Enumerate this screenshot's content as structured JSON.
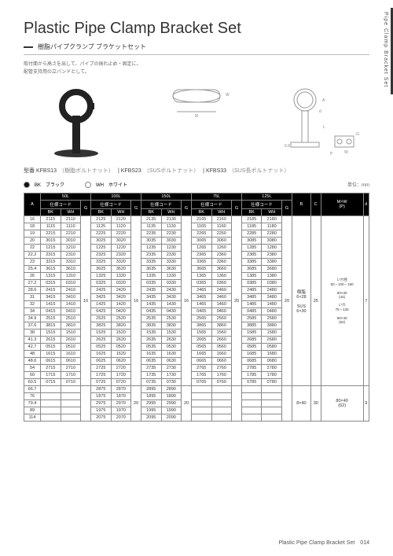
{
  "sideLabel": "Pipe Clamp Bracket Set",
  "title": "Plastic Pipe Clamp Bracket Set",
  "subtitle": "樹脂パイプクランプ ブラケットセット",
  "desc1": "取付面から高さを出して、パイプの振れ止め・固定に。",
  "desc2": "配管支持用の立バンドとして。",
  "modelLabel": "型番",
  "model1": "KFBS13",
  "model1n": "（樹脂ボルトナット）",
  "model2": "KFBS23",
  "model2n": "（SUSボルトナット）",
  "model3": "KFBS33",
  "model3n": "（SUS長ボルトナット）",
  "bk": "BK　ブラック",
  "wh": "WH　ホワイト",
  "unit": "単位：mm",
  "footer": "Plastic Pipe Clamp Bracket Set　014",
  "headers": {
    "A": "A",
    "sizes": [
      "50L",
      "100L",
      "150L",
      "75L",
      "125L"
    ],
    "code": "仕様コード",
    "G": "G",
    "BK": "BK",
    "WH": "WH",
    "B": "B",
    "C": "C",
    "MW": "M×W\n(P)",
    "d": "d"
  },
  "rows": [
    {
      "A": "16",
      "c": [
        [
          "2115",
          "2110"
        ],
        [
          "2125",
          "2120"
        ],
        [
          "2135",
          "2130"
        ],
        [
          "2165",
          "2160"
        ],
        [
          "2185",
          "2180"
        ]
      ]
    },
    {
      "A": "18",
      "c": [
        [
          "1115",
          "1110"
        ],
        [
          "1125",
          "1120"
        ],
        [
          "1135",
          "1130"
        ],
        [
          "1165",
          "1160"
        ],
        [
          "1185",
          "1180"
        ]
      ]
    },
    {
      "A": "19",
      "c": [
        [
          "2215",
          "2210"
        ],
        [
          "2225",
          "2220"
        ],
        [
          "2235",
          "2230"
        ],
        [
          "2265",
          "2260"
        ],
        [
          "2285",
          "2280"
        ]
      ]
    },
    {
      "A": "20",
      "c": [
        [
          "3015",
          "3010"
        ],
        [
          "3025",
          "3020"
        ],
        [
          "3035",
          "3030"
        ],
        [
          "3065",
          "3060"
        ],
        [
          "3085",
          "3080"
        ]
      ]
    },
    {
      "A": "22",
      "c": [
        [
          "1215",
          "1210"
        ],
        [
          "1225",
          "1220"
        ],
        [
          "1235",
          "1230"
        ],
        [
          "1265",
          "1260"
        ],
        [
          "1285",
          "1280"
        ]
      ]
    },
    {
      "A": "22.2",
      "c": [
        [
          "2315",
          "2310"
        ],
        [
          "2325",
          "2320"
        ],
        [
          "2335",
          "2330"
        ],
        [
          "2365",
          "2360"
        ],
        [
          "2385",
          "2380"
        ]
      ]
    },
    {
      "A": "23",
      "c": [
        [
          "3315",
          "3310"
        ],
        [
          "3325",
          "3320"
        ],
        [
          "3335",
          "3330"
        ],
        [
          "3365",
          "3360"
        ],
        [
          "3385",
          "3380"
        ]
      ]
    },
    {
      "A": "25.4",
      "c": [
        [
          "3615",
          "3610"
        ],
        [
          "3625",
          "3620"
        ],
        [
          "3635",
          "3630"
        ],
        [
          "3665",
          "3660"
        ],
        [
          "3685",
          "3680"
        ]
      ]
    },
    {
      "A": "26",
      "c": [
        [
          "1315",
          "1310"
        ],
        [
          "1325",
          "1320"
        ],
        [
          "1335",
          "1330"
        ],
        [
          "1365",
          "1360"
        ],
        [
          "1385",
          "1380"
        ]
      ]
    },
    {
      "A": "27.2",
      "c": [
        [
          "0315",
          "0310"
        ],
        [
          "0325",
          "0320"
        ],
        [
          "0335",
          "0330"
        ],
        [
          "0365",
          "0360"
        ],
        [
          "0385",
          "0380"
        ]
      ]
    },
    {
      "A": "28.6",
      "c": [
        [
          "2415",
          "2410"
        ],
        [
          "2425",
          "2420"
        ],
        [
          "2435",
          "2430"
        ],
        [
          "2465",
          "2460"
        ],
        [
          "2485",
          "2480"
        ]
      ]
    },
    {
      "A": "31",
      "c": [
        [
          "3415",
          "3410"
        ],
        [
          "3425",
          "3420"
        ],
        [
          "3435",
          "3430"
        ],
        [
          "3465",
          "3460"
        ],
        [
          "3485",
          "3480"
        ]
      ]
    },
    {
      "A": "32",
      "c": [
        [
          "1415",
          "1410"
        ],
        [
          "1425",
          "1420"
        ],
        [
          "1435",
          "1430"
        ],
        [
          "1465",
          "1460"
        ],
        [
          "1485",
          "1480"
        ]
      ]
    },
    {
      "A": "34",
      "c": [
        [
          "0415",
          "0410"
        ],
        [
          "0425",
          "0420"
        ],
        [
          "0435",
          "0430"
        ],
        [
          "0465",
          "0460"
        ],
        [
          "0485",
          "0480"
        ]
      ]
    },
    {
      "A": "34.9",
      "c": [
        [
          "2515",
          "2510"
        ],
        [
          "2525",
          "2520"
        ],
        [
          "2535",
          "2530"
        ],
        [
          "2565",
          "2560"
        ],
        [
          "2585",
          "2580"
        ]
      ]
    },
    {
      "A": "37.6",
      "c": [
        [
          "3815",
          "3810"
        ],
        [
          "3825",
          "3820"
        ],
        [
          "3835",
          "3830"
        ],
        [
          "3865",
          "3860"
        ],
        [
          "3885",
          "3880"
        ]
      ]
    },
    {
      "A": "38",
      "c": [
        [
          "1515",
          "1510"
        ],
        [
          "1525",
          "1520"
        ],
        [
          "1535",
          "1530"
        ],
        [
          "1565",
          "1560"
        ],
        [
          "1585",
          "1580"
        ]
      ]
    },
    {
      "A": "41.3",
      "c": [
        [
          "2615",
          "2610"
        ],
        [
          "2625",
          "2620"
        ],
        [
          "2635",
          "2630"
        ],
        [
          "2665",
          "2660"
        ],
        [
          "2685",
          "2680"
        ]
      ]
    },
    {
      "A": "42.7",
      "c": [
        [
          "0515",
          "0510"
        ],
        [
          "0525",
          "0520"
        ],
        [
          "0535",
          "0530"
        ],
        [
          "0565",
          "0560"
        ],
        [
          "0585",
          "0580"
        ]
      ]
    },
    {
      "A": "48",
      "c": [
        [
          "1615",
          "1610"
        ],
        [
          "1625",
          "1620"
        ],
        [
          "1635",
          "1630"
        ],
        [
          "1665",
          "1660"
        ],
        [
          "1685",
          "1680"
        ]
      ]
    },
    {
      "A": "48.6",
      "c": [
        [
          "0615",
          "0610"
        ],
        [
          "0625",
          "0620"
        ],
        [
          "0635",
          "0630"
        ],
        [
          "0665",
          "0660"
        ],
        [
          "0685",
          "0680"
        ]
      ]
    },
    {
      "A": "54",
      "c": [
        [
          "2715",
          "2710"
        ],
        [
          "2725",
          "2720"
        ],
        [
          "2735",
          "2730"
        ],
        [
          "2765",
          "2760"
        ],
        [
          "2785",
          "2780"
        ]
      ]
    },
    {
      "A": "60",
      "c": [
        [
          "1715",
          "1710"
        ],
        [
          "1725",
          "1720"
        ],
        [
          "1735",
          "1730"
        ],
        [
          "1765",
          "1760"
        ],
        [
          "1785",
          "1780"
        ]
      ]
    },
    {
      "A": "60.5",
      "c": [
        [
          "0715",
          "0710"
        ],
        [
          "0725",
          "0720"
        ],
        [
          "0735",
          "0730"
        ],
        [
          "0765",
          "0760"
        ],
        [
          "0785",
          "0780"
        ]
      ]
    }
  ],
  "rows2": [
    {
      "A": "66.7",
      "c": [
        [
          "",
          ""
        ],
        [
          "2875",
          "2870"
        ],
        [
          "2895",
          "2890"
        ],
        [
          "",
          ""
        ],
        [
          "",
          ""
        ]
      ]
    },
    {
      "A": "76",
      "c": [
        [
          "",
          ""
        ],
        [
          "1875",
          "1870"
        ],
        [
          "1895",
          "1890"
        ],
        [
          "",
          ""
        ],
        [
          "",
          ""
        ]
      ]
    },
    {
      "A": "79.4",
      "c": [
        [
          "",
          ""
        ],
        [
          "2975",
          "2970"
        ],
        [
          "2995",
          "2990"
        ],
        [
          "",
          ""
        ],
        [
          "",
          ""
        ]
      ]
    },
    {
      "A": "89",
      "c": [
        [
          "",
          ""
        ],
        [
          "1975",
          "1970"
        ],
        [
          "1995",
          "1990"
        ],
        [
          "",
          ""
        ],
        [
          "",
          ""
        ]
      ]
    },
    {
      "A": "114",
      "c": [
        [
          "",
          ""
        ],
        [
          "2075",
          "2070"
        ],
        [
          "2095",
          "2090"
        ],
        [
          "",
          ""
        ],
        [
          "",
          ""
        ]
      ]
    }
  ],
  "Gvals": [
    "16",
    "16",
    "16",
    "20",
    "20"
  ],
  "Gvals2": [
    "",
    "20",
    "20",
    "",
    ""
  ],
  "B1": "樹脂\n6×28\n\nSUS\n6×30",
  "C1": "25",
  "MW1": "い穴径\n50・100・150\n\n60×30\n(44)\n\nい穴\n75・125\n\n80×40\n(62)",
  "d1": "7",
  "B2": "8×40",
  "C2": "30",
  "MW2": "80×40\n(62)",
  "d2": "9"
}
